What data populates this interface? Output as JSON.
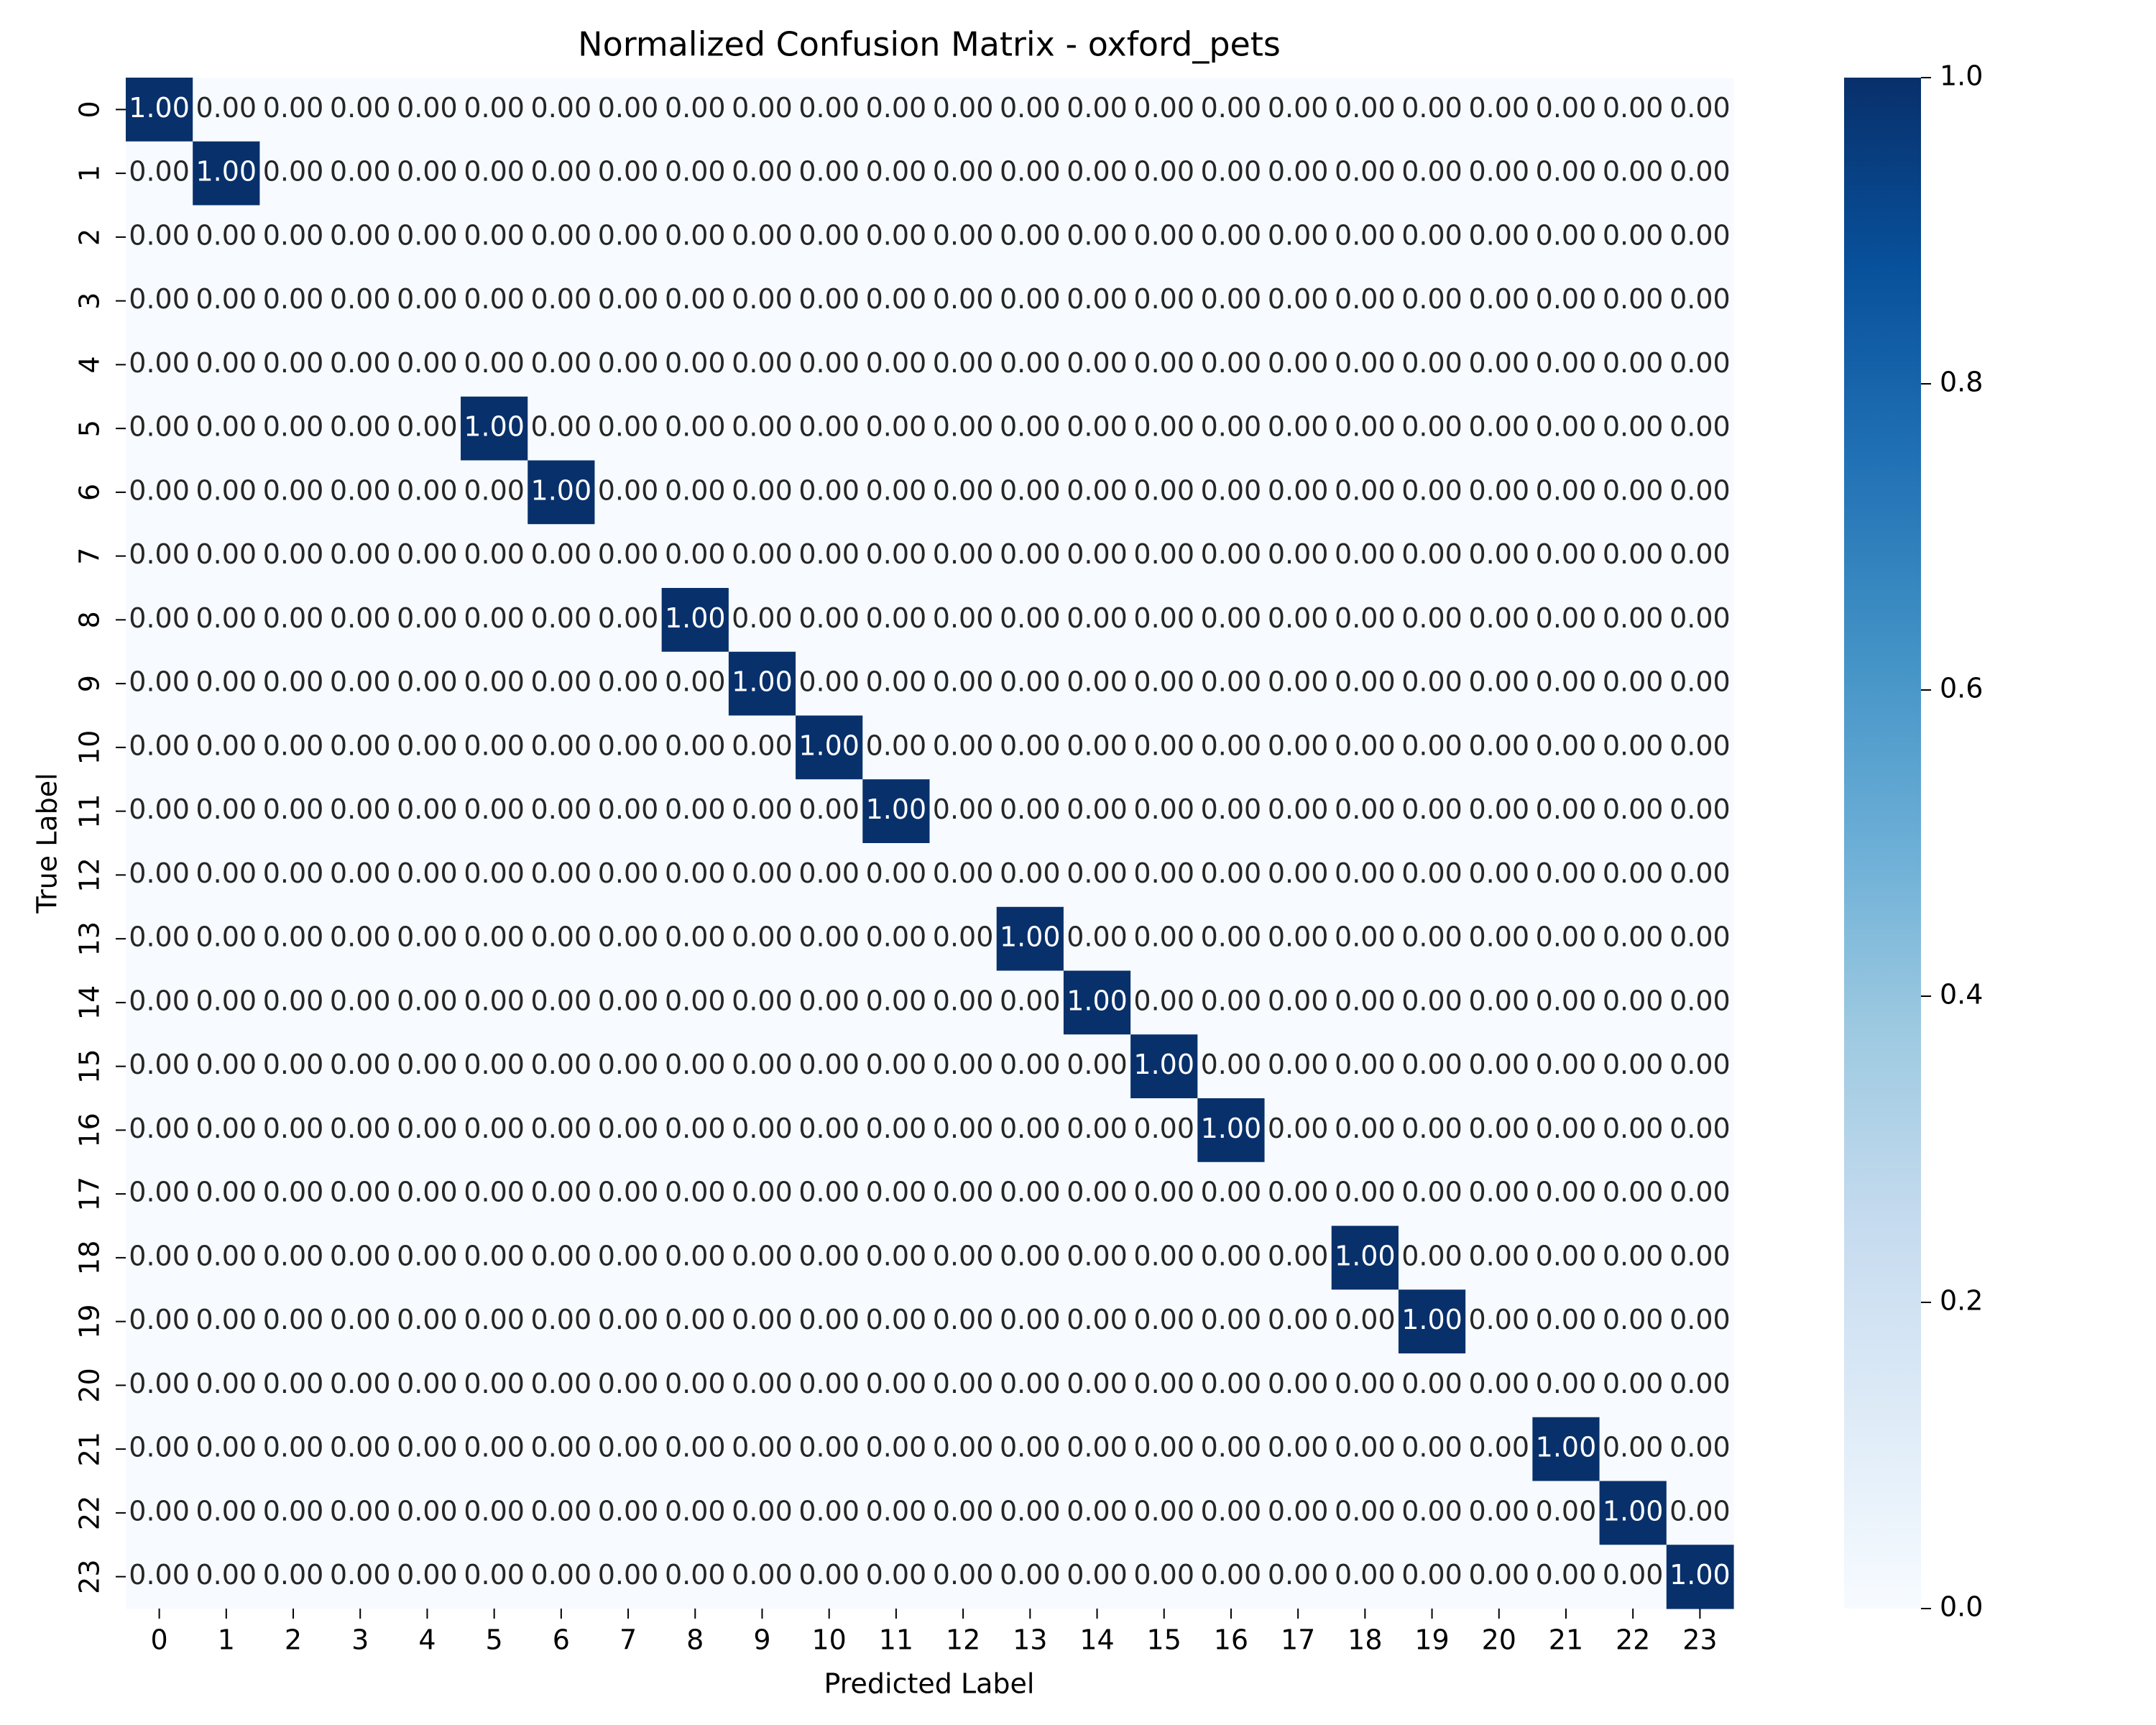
{
  "chart_data": {
    "type": "heatmap",
    "title": "Normalized Confusion Matrix - oxford_pets",
    "xlabel": "Predicted Label",
    "ylabel": "True Label",
    "x_labels": [
      "0",
      "1",
      "2",
      "3",
      "4",
      "5",
      "6",
      "7",
      "8",
      "9",
      "10",
      "11",
      "12",
      "13",
      "14",
      "15",
      "16",
      "17",
      "18",
      "19",
      "20",
      "21",
      "22",
      "23"
    ],
    "y_labels": [
      "0",
      "1",
      "2",
      "3",
      "4",
      "5",
      "6",
      "7",
      "8",
      "9",
      "10",
      "11",
      "12",
      "13",
      "14",
      "15",
      "16",
      "17",
      "18",
      "19",
      "20",
      "21",
      "22",
      "23"
    ],
    "values": [
      [
        1,
        0,
        0,
        0,
        0,
        0,
        0,
        0,
        0,
        0,
        0,
        0,
        0,
        0,
        0,
        0,
        0,
        0,
        0,
        0,
        0,
        0,
        0,
        0
      ],
      [
        0,
        1,
        0,
        0,
        0,
        0,
        0,
        0,
        0,
        0,
        0,
        0,
        0,
        0,
        0,
        0,
        0,
        0,
        0,
        0,
        0,
        0,
        0,
        0
      ],
      [
        0,
        0,
        0,
        0,
        0,
        0,
        0,
        0,
        0,
        0,
        0,
        0,
        0,
        0,
        0,
        0,
        0,
        0,
        0,
        0,
        0,
        0,
        0,
        0
      ],
      [
        0,
        0,
        0,
        0,
        0,
        0,
        0,
        0,
        0,
        0,
        0,
        0,
        0,
        0,
        0,
        0,
        0,
        0,
        0,
        0,
        0,
        0,
        0,
        0
      ],
      [
        0,
        0,
        0,
        0,
        0,
        0,
        0,
        0,
        0,
        0,
        0,
        0,
        0,
        0,
        0,
        0,
        0,
        0,
        0,
        0,
        0,
        0,
        0,
        0
      ],
      [
        0,
        0,
        0,
        0,
        0,
        1,
        0,
        0,
        0,
        0,
        0,
        0,
        0,
        0,
        0,
        0,
        0,
        0,
        0,
        0,
        0,
        0,
        0,
        0
      ],
      [
        0,
        0,
        0,
        0,
        0,
        0,
        1,
        0,
        0,
        0,
        0,
        0,
        0,
        0,
        0,
        0,
        0,
        0,
        0,
        0,
        0,
        0,
        0,
        0
      ],
      [
        0,
        0,
        0,
        0,
        0,
        0,
        0,
        0,
        0,
        0,
        0,
        0,
        0,
        0,
        0,
        0,
        0,
        0,
        0,
        0,
        0,
        0,
        0,
        0
      ],
      [
        0,
        0,
        0,
        0,
        0,
        0,
        0,
        0,
        1,
        0,
        0,
        0,
        0,
        0,
        0,
        0,
        0,
        0,
        0,
        0,
        0,
        0,
        0,
        0
      ],
      [
        0,
        0,
        0,
        0,
        0,
        0,
        0,
        0,
        0,
        1,
        0,
        0,
        0,
        0,
        0,
        0,
        0,
        0,
        0,
        0,
        0,
        0,
        0,
        0
      ],
      [
        0,
        0,
        0,
        0,
        0,
        0,
        0,
        0,
        0,
        0,
        1,
        0,
        0,
        0,
        0,
        0,
        0,
        0,
        0,
        0,
        0,
        0,
        0,
        0
      ],
      [
        0,
        0,
        0,
        0,
        0,
        0,
        0,
        0,
        0,
        0,
        0,
        1,
        0,
        0,
        0,
        0,
        0,
        0,
        0,
        0,
        0,
        0,
        0,
        0
      ],
      [
        0,
        0,
        0,
        0,
        0,
        0,
        0,
        0,
        0,
        0,
        0,
        0,
        0,
        0,
        0,
        0,
        0,
        0,
        0,
        0,
        0,
        0,
        0,
        0
      ],
      [
        0,
        0,
        0,
        0,
        0,
        0,
        0,
        0,
        0,
        0,
        0,
        0,
        0,
        1,
        0,
        0,
        0,
        0,
        0,
        0,
        0,
        0,
        0,
        0
      ],
      [
        0,
        0,
        0,
        0,
        0,
        0,
        0,
        0,
        0,
        0,
        0,
        0,
        0,
        0,
        1,
        0,
        0,
        0,
        0,
        0,
        0,
        0,
        0,
        0
      ],
      [
        0,
        0,
        0,
        0,
        0,
        0,
        0,
        0,
        0,
        0,
        0,
        0,
        0,
        0,
        0,
        1,
        0,
        0,
        0,
        0,
        0,
        0,
        0,
        0
      ],
      [
        0,
        0,
        0,
        0,
        0,
        0,
        0,
        0,
        0,
        0,
        0,
        0,
        0,
        0,
        0,
        0,
        1,
        0,
        0,
        0,
        0,
        0,
        0,
        0
      ],
      [
        0,
        0,
        0,
        0,
        0,
        0,
        0,
        0,
        0,
        0,
        0,
        0,
        0,
        0,
        0,
        0,
        0,
        0,
        0,
        0,
        0,
        0,
        0,
        0
      ],
      [
        0,
        0,
        0,
        0,
        0,
        0,
        0,
        0,
        0,
        0,
        0,
        0,
        0,
        0,
        0,
        0,
        0,
        0,
        1,
        0,
        0,
        0,
        0,
        0
      ],
      [
        0,
        0,
        0,
        0,
        0,
        0,
        0,
        0,
        0,
        0,
        0,
        0,
        0,
        0,
        0,
        0,
        0,
        0,
        0,
        1,
        0,
        0,
        0,
        0
      ],
      [
        0,
        0,
        0,
        0,
        0,
        0,
        0,
        0,
        0,
        0,
        0,
        0,
        0,
        0,
        0,
        0,
        0,
        0,
        0,
        0,
        0,
        0,
        0,
        0
      ],
      [
        0,
        0,
        0,
        0,
        0,
        0,
        0,
        0,
        0,
        0,
        0,
        0,
        0,
        0,
        0,
        0,
        0,
        0,
        0,
        0,
        0,
        1,
        0,
        0
      ],
      [
        0,
        0,
        0,
        0,
        0,
        0,
        0,
        0,
        0,
        0,
        0,
        0,
        0,
        0,
        0,
        0,
        0,
        0,
        0,
        0,
        0,
        0,
        1,
        0
      ],
      [
        0,
        0,
        0,
        0,
        0,
        0,
        0,
        0,
        0,
        0,
        0,
        0,
        0,
        0,
        0,
        0,
        0,
        0,
        0,
        0,
        0,
        0,
        0,
        1
      ]
    ],
    "value_format": "0.00",
    "colormap": "Blues",
    "color_low": "#f7fbff",
    "color_high": "#08306b",
    "colorbar": {
      "range": [
        0,
        1
      ],
      "ticks": [
        "0.0",
        "0.2",
        "0.4",
        "0.6",
        "0.8",
        "1.0"
      ]
    }
  }
}
